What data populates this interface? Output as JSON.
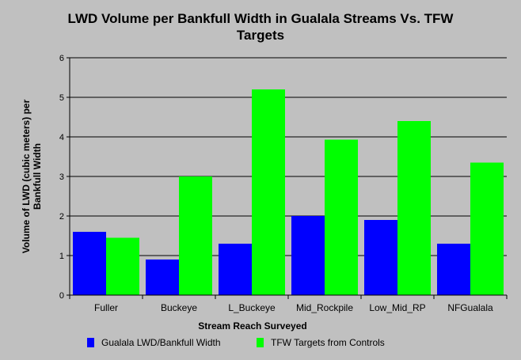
{
  "chart_data": {
    "type": "bar",
    "title_lines": [
      "LWD Volume per Bankfull Width in Gualala Streams Vs. TFW",
      "Targets"
    ],
    "xlabel": "Stream Reach Surveyed",
    "ylabel_lines": [
      "Volume of LWD (cubic meters) per",
      "Bankfull Width"
    ],
    "categories": [
      "Fuller",
      "Buckeye",
      "L_Buckeye",
      "Mid_Rockpile",
      "Low_Mid_RP",
      "NFGualala"
    ],
    "series": [
      {
        "name": "Gualala LWD/Bankfull Width",
        "color": "#0000ff",
        "values": [
          1.6,
          0.9,
          1.3,
          2.0,
          1.9,
          1.3
        ]
      },
      {
        "name": "TFW Targets from Controls",
        "color": "#00ff00",
        "values": [
          1.45,
          3.0,
          5.2,
          3.93,
          4.4,
          3.35
        ]
      }
    ],
    "ylim": [
      0,
      6
    ],
    "yticks": [
      0,
      1,
      2,
      3,
      4,
      5,
      6
    ],
    "grid": true,
    "legend_position": "bottom"
  }
}
